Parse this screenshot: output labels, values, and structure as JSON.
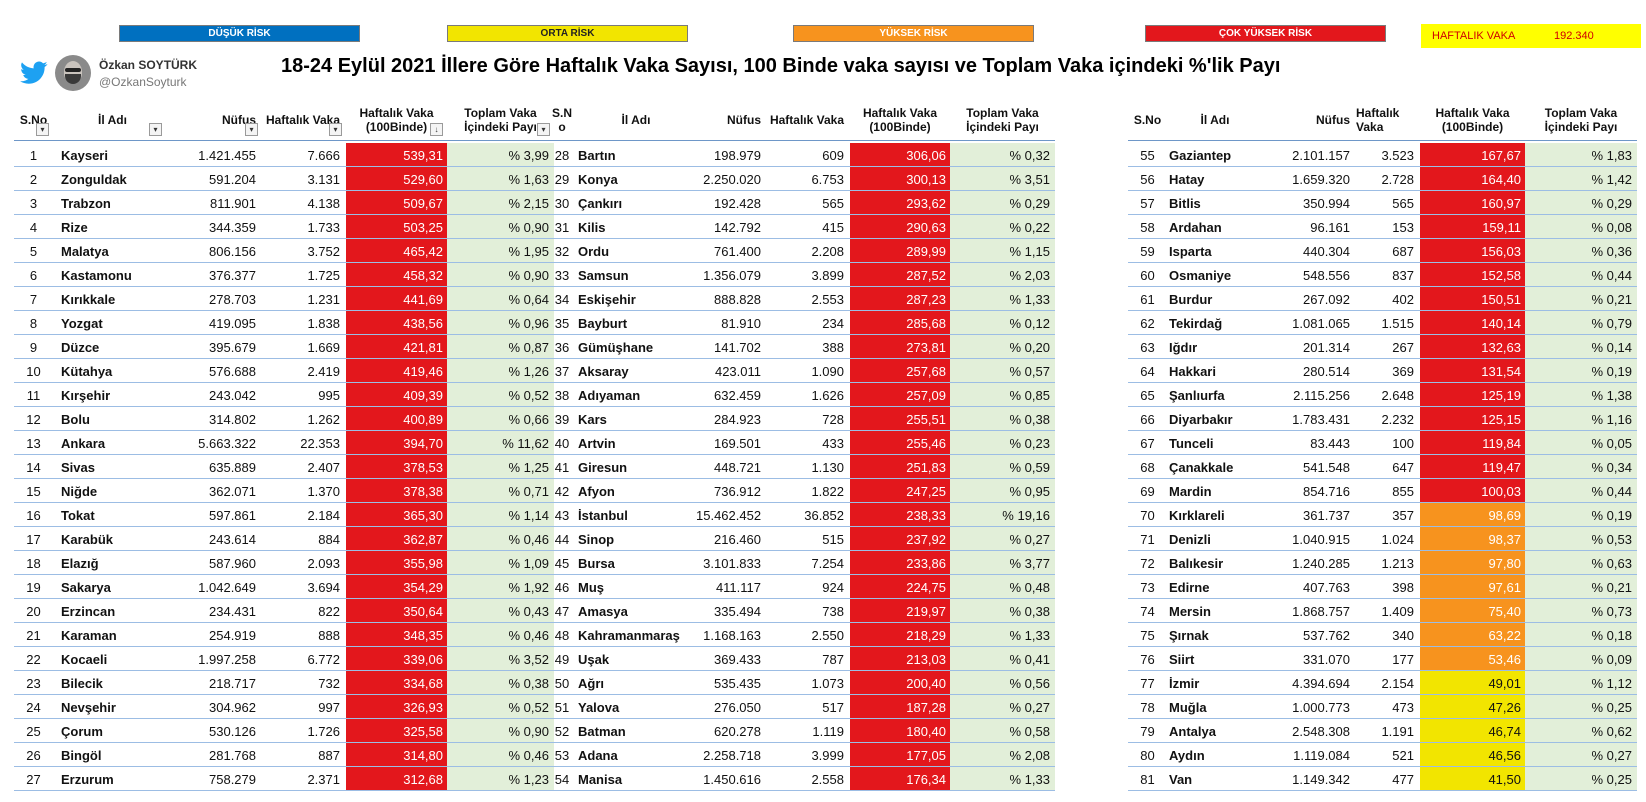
{
  "legend": {
    "low": {
      "label": "DÜŞÜK RİSK",
      "color": "#0070c0"
    },
    "medium": {
      "label": "ORTA RİSK",
      "color": "#f2e500"
    },
    "high": {
      "label": "YÜKSEK RİSK",
      "color": "#f7931e"
    },
    "very_high": {
      "label": "ÇOK YÜKSEK RİSK",
      "color": "#e3171c"
    }
  },
  "weekly_total": {
    "label": "HAFTALIK VAKA",
    "value": "192.340"
  },
  "author": {
    "name": "Özkan SOYTÜRK",
    "handle": "@OzkanSoyturk"
  },
  "title": "18-24 Eylül 2021  İllere Göre Haftalık Vaka Sayısı, 100 Binde vaka sayısı ve Toplam Vaka içindeki %'lik Payı",
  "colors": {
    "share_bg": "#e2efd9",
    "row_line": "#9cbde4"
  },
  "headers": [
    {
      "sno": "S.No",
      "name": "İl Adı",
      "pop": "Nüfus",
      "weekly": "Haftalık Vaka",
      "rate": "Haftalık Vaka (100Binde)",
      "share": "Toplam Vaka İçindeki Payı"
    },
    {
      "sno": "S.N o",
      "name": "İl Adı",
      "pop": "Nüfus",
      "weekly": "Haftalık Vaka",
      "rate": "Haftalık Vaka (100Binde)",
      "share": "Toplam Vaka İçindeki Payı"
    },
    {
      "sno": "S.No",
      "name": "İl Adı",
      "pop": "Nüfus",
      "weekly": "Haftalık Vaka",
      "rate": "Haftalık Vaka (100Binde)",
      "share": "Toplam Vaka İçindeki Payı"
    }
  ],
  "rows": [
    [
      [
        "1",
        "Kayseri",
        "1.421.455",
        "7.666",
        "539,31",
        "% 3,99",
        "very_high"
      ],
      [
        "2",
        "Zonguldak",
        "591.204",
        "3.131",
        "529,60",
        "% 1,63",
        "very_high"
      ],
      [
        "3",
        "Trabzon",
        "811.901",
        "4.138",
        "509,67",
        "% 2,15",
        "very_high"
      ],
      [
        "4",
        "Rize",
        "344.359",
        "1.733",
        "503,25",
        "% 0,90",
        "very_high"
      ],
      [
        "5",
        "Malatya",
        "806.156",
        "3.752",
        "465,42",
        "% 1,95",
        "very_high"
      ],
      [
        "6",
        "Kastamonu",
        "376.377",
        "1.725",
        "458,32",
        "% 0,90",
        "very_high"
      ],
      [
        "7",
        "Kırıkkale",
        "278.703",
        "1.231",
        "441,69",
        "% 0,64",
        "very_high"
      ],
      [
        "8",
        "Yozgat",
        "419.095",
        "1.838",
        "438,56",
        "% 0,96",
        "very_high"
      ],
      [
        "9",
        "Düzce",
        "395.679",
        "1.669",
        "421,81",
        "% 0,87",
        "very_high"
      ],
      [
        "10",
        "Kütahya",
        "576.688",
        "2.419",
        "419,46",
        "% 1,26",
        "very_high"
      ],
      [
        "11",
        "Kırşehir",
        "243.042",
        "995",
        "409,39",
        "% 0,52",
        "very_high"
      ],
      [
        "12",
        "Bolu",
        "314.802",
        "1.262",
        "400,89",
        "% 0,66",
        "very_high"
      ],
      [
        "13",
        "Ankara",
        "5.663.322",
        "22.353",
        "394,70",
        "% 11,62",
        "very_high"
      ],
      [
        "14",
        "Sivas",
        "635.889",
        "2.407",
        "378,53",
        "% 1,25",
        "very_high"
      ],
      [
        "15",
        "Niğde",
        "362.071",
        "1.370",
        "378,38",
        "% 0,71",
        "very_high"
      ],
      [
        "16",
        "Tokat",
        "597.861",
        "2.184",
        "365,30",
        "% 1,14",
        "very_high"
      ],
      [
        "17",
        "Karabük",
        "243.614",
        "884",
        "362,87",
        "% 0,46",
        "very_high"
      ],
      [
        "18",
        "Elazığ",
        "587.960",
        "2.093",
        "355,98",
        "% 1,09",
        "very_high"
      ],
      [
        "19",
        "Sakarya",
        "1.042.649",
        "3.694",
        "354,29",
        "% 1,92",
        "very_high"
      ],
      [
        "20",
        "Erzincan",
        "234.431",
        "822",
        "350,64",
        "% 0,43",
        "very_high"
      ],
      [
        "21",
        "Karaman",
        "254.919",
        "888",
        "348,35",
        "% 0,46",
        "very_high"
      ],
      [
        "22",
        "Kocaeli",
        "1.997.258",
        "6.772",
        "339,06",
        "% 3,52",
        "very_high"
      ],
      [
        "23",
        "Bilecik",
        "218.717",
        "732",
        "334,68",
        "% 0,38",
        "very_high"
      ],
      [
        "24",
        "Nevşehir",
        "304.962",
        "997",
        "326,93",
        "% 0,52",
        "very_high"
      ],
      [
        "25",
        "Çorum",
        "530.126",
        "1.726",
        "325,58",
        "% 0,90",
        "very_high"
      ],
      [
        "26",
        "Bingöl",
        "281.768",
        "887",
        "314,80",
        "% 0,46",
        "very_high"
      ],
      [
        "27",
        "Erzurum",
        "758.279",
        "2.371",
        "312,68",
        "% 1,23",
        "very_high"
      ]
    ],
    [
      [
        "28",
        "Bartın",
        "198.979",
        "609",
        "306,06",
        "% 0,32",
        "very_high"
      ],
      [
        "29",
        "Konya",
        "2.250.020",
        "6.753",
        "300,13",
        "% 3,51",
        "very_high"
      ],
      [
        "30",
        "Çankırı",
        "192.428",
        "565",
        "293,62",
        "% 0,29",
        "very_high"
      ],
      [
        "31",
        "Kilis",
        "142.792",
        "415",
        "290,63",
        "% 0,22",
        "very_high"
      ],
      [
        "32",
        "Ordu",
        "761.400",
        "2.208",
        "289,99",
        "% 1,15",
        "very_high"
      ],
      [
        "33",
        "Samsun",
        "1.356.079",
        "3.899",
        "287,52",
        "% 2,03",
        "very_high"
      ],
      [
        "34",
        "Eskişehir",
        "888.828",
        "2.553",
        "287,23",
        "% 1,33",
        "very_high"
      ],
      [
        "35",
        "Bayburt",
        "81.910",
        "234",
        "285,68",
        "% 0,12",
        "very_high"
      ],
      [
        "36",
        "Gümüşhane",
        "141.702",
        "388",
        "273,81",
        "% 0,20",
        "very_high"
      ],
      [
        "37",
        "Aksaray",
        "423.011",
        "1.090",
        "257,68",
        "% 0,57",
        "very_high"
      ],
      [
        "38",
        "Adıyaman",
        "632.459",
        "1.626",
        "257,09",
        "% 0,85",
        "very_high"
      ],
      [
        "39",
        "Kars",
        "284.923",
        "728",
        "255,51",
        "% 0,38",
        "very_high"
      ],
      [
        "40",
        "Artvin",
        "169.501",
        "433",
        "255,46",
        "% 0,23",
        "very_high"
      ],
      [
        "41",
        "Giresun",
        "448.721",
        "1.130",
        "251,83",
        "% 0,59",
        "very_high"
      ],
      [
        "42",
        "Afyon",
        "736.912",
        "1.822",
        "247,25",
        "% 0,95",
        "very_high"
      ],
      [
        "43",
        "İstanbul",
        "15.462.452",
        "36.852",
        "238,33",
        "% 19,16",
        "very_high"
      ],
      [
        "44",
        "Sinop",
        "216.460",
        "515",
        "237,92",
        "% 0,27",
        "very_high"
      ],
      [
        "45",
        "Bursa",
        "3.101.833",
        "7.254",
        "233,86",
        "% 3,77",
        "very_high"
      ],
      [
        "46",
        "Muş",
        "411.117",
        "924",
        "224,75",
        "% 0,48",
        "very_high"
      ],
      [
        "47",
        "Amasya",
        "335.494",
        "738",
        "219,97",
        "% 0,38",
        "very_high"
      ],
      [
        "48",
        "Kahramanmaraş",
        "1.168.163",
        "2.550",
        "218,29",
        "% 1,33",
        "very_high"
      ],
      [
        "49",
        "Uşak",
        "369.433",
        "787",
        "213,03",
        "% 0,41",
        "very_high"
      ],
      [
        "50",
        "Ağrı",
        "535.435",
        "1.073",
        "200,40",
        "% 0,56",
        "very_high"
      ],
      [
        "51",
        "Yalova",
        "276.050",
        "517",
        "187,28",
        "% 0,27",
        "very_high"
      ],
      [
        "52",
        "Batman",
        "620.278",
        "1.119",
        "180,40",
        "% 0,58",
        "very_high"
      ],
      [
        "53",
        "Adana",
        "2.258.718",
        "3.999",
        "177,05",
        "% 2,08",
        "very_high"
      ],
      [
        "54",
        "Manisa",
        "1.450.616",
        "2.558",
        "176,34",
        "% 1,33",
        "very_high"
      ]
    ],
    [
      [
        "55",
        "Gaziantep",
        "2.101.157",
        "3.523",
        "167,67",
        "% 1,83",
        "very_high"
      ],
      [
        "56",
        "Hatay",
        "1.659.320",
        "2.728",
        "164,40",
        "% 1,42",
        "very_high"
      ],
      [
        "57",
        "Bitlis",
        "350.994",
        "565",
        "160,97",
        "% 0,29",
        "very_high"
      ],
      [
        "58",
        "Ardahan",
        "96.161",
        "153",
        "159,11",
        "% 0,08",
        "very_high"
      ],
      [
        "59",
        "Isparta",
        "440.304",
        "687",
        "156,03",
        "% 0,36",
        "very_high"
      ],
      [
        "60",
        "Osmaniye",
        "548.556",
        "837",
        "152,58",
        "% 0,44",
        "very_high"
      ],
      [
        "61",
        "Burdur",
        "267.092",
        "402",
        "150,51",
        "% 0,21",
        "very_high"
      ],
      [
        "62",
        "Tekirdağ",
        "1.081.065",
        "1.515",
        "140,14",
        "% 0,79",
        "very_high"
      ],
      [
        "63",
        "Iğdır",
        "201.314",
        "267",
        "132,63",
        "% 0,14",
        "very_high"
      ],
      [
        "64",
        "Hakkari",
        "280.514",
        "369",
        "131,54",
        "% 0,19",
        "very_high"
      ],
      [
        "65",
        "Şanlıurfa",
        "2.115.256",
        "2.648",
        "125,19",
        "% 1,38",
        "very_high"
      ],
      [
        "66",
        "Diyarbakır",
        "1.783.431",
        "2.232",
        "125,15",
        "% 1,16",
        "very_high"
      ],
      [
        "67",
        "Tunceli",
        "83.443",
        "100",
        "119,84",
        "% 0,05",
        "very_high"
      ],
      [
        "68",
        "Çanakkale",
        "541.548",
        "647",
        "119,47",
        "% 0,34",
        "very_high"
      ],
      [
        "69",
        "Mardin",
        "854.716",
        "855",
        "100,03",
        "% 0,44",
        "very_high"
      ],
      [
        "70",
        "Kırklareli",
        "361.737",
        "357",
        "98,69",
        "% 0,19",
        "high"
      ],
      [
        "71",
        "Denizli",
        "1.040.915",
        "1.024",
        "98,37",
        "% 0,53",
        "high"
      ],
      [
        "72",
        "Balıkesir",
        "1.240.285",
        "1.213",
        "97,80",
        "% 0,63",
        "high"
      ],
      [
        "73",
        "Edirne",
        "407.763",
        "398",
        "97,61",
        "% 0,21",
        "high"
      ],
      [
        "74",
        "Mersin",
        "1.868.757",
        "1.409",
        "75,40",
        "% 0,73",
        "high"
      ],
      [
        "75",
        "Şırnak",
        "537.762",
        "340",
        "63,22",
        "% 0,18",
        "high"
      ],
      [
        "76",
        "Siirt",
        "331.070",
        "177",
        "53,46",
        "% 0,09",
        "high"
      ],
      [
        "77",
        "İzmir",
        "4.394.694",
        "2.154",
        "49,01",
        "% 1,12",
        "medium"
      ],
      [
        "78",
        "Muğla",
        "1.000.773",
        "473",
        "47,26",
        "% 0,25",
        "medium"
      ],
      [
        "79",
        "Antalya",
        "2.548.308",
        "1.191",
        "46,74",
        "% 0,62",
        "medium"
      ],
      [
        "80",
        "Aydın",
        "1.119.084",
        "521",
        "46,56",
        "% 0,27",
        "medium"
      ],
      [
        "81",
        "Van",
        "1.149.342",
        "477",
        "41,50",
        "% 0,25",
        "medium"
      ]
    ]
  ]
}
